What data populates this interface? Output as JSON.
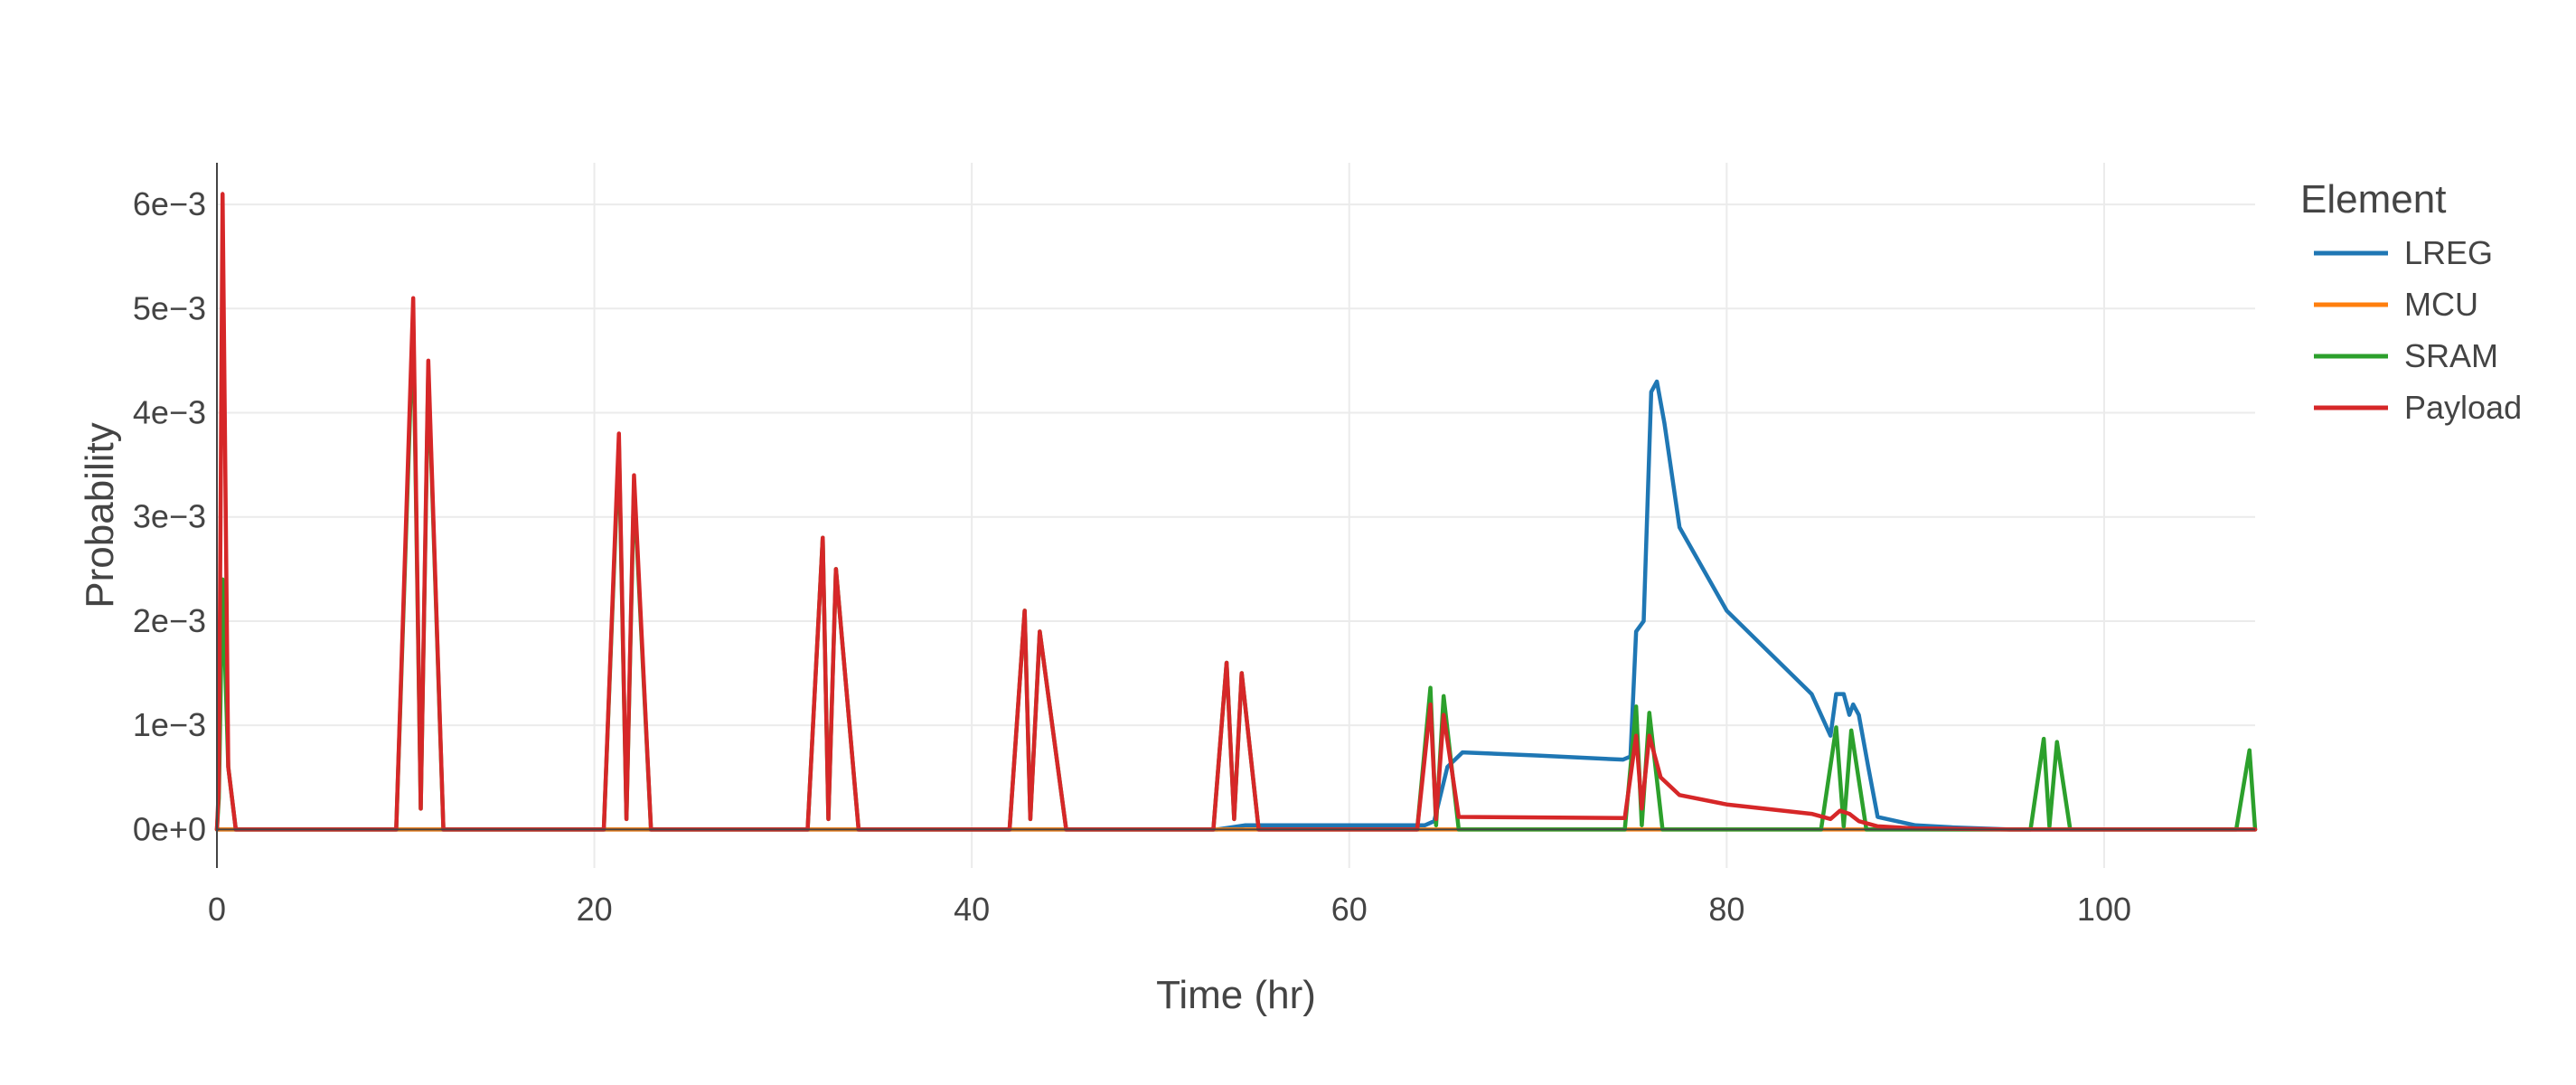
{
  "chart_data": {
    "type": "line",
    "title": "",
    "xlabel": "Time (hr)",
    "ylabel": "Probability",
    "xlim": [
      0,
      108
    ],
    "ylim": [
      -0.00037,
      0.0064
    ],
    "x_ticks": [
      0,
      20,
      40,
      60,
      80,
      100
    ],
    "x_tick_labels": [
      "0",
      "20",
      "40",
      "60",
      "80",
      "100"
    ],
    "y_ticks": [
      0,
      0.001,
      0.002,
      0.003,
      0.004,
      0.005,
      0.006
    ],
    "y_tick_labels": [
      "0e+0",
      "1e−3",
      "2e−3",
      "3e−3",
      "4e−3",
      "5e−3",
      "6e−3"
    ],
    "grid": true,
    "legend_title": "Element",
    "legend_position": "right",
    "series": [
      {
        "name": "LREG",
        "color": "#1f77b4",
        "x": [
          0,
          53,
          54.5,
          64,
          64.5,
          65.2,
          66,
          70,
          74.5,
          74.9,
          75.2,
          75.6,
          76,
          76.3,
          76.7,
          77.5,
          80,
          84.5,
          85.5,
          85.8,
          86.2,
          86.5,
          86.7,
          87,
          87.5,
          88,
          90,
          92,
          95,
          108
        ],
        "y": [
          0,
          0,
          4e-05,
          4e-05,
          8e-05,
          0.0006,
          0.00074,
          0.00071,
          0.00067,
          0.0007,
          0.0019,
          0.002,
          0.0042,
          0.0043,
          0.0039,
          0.0029,
          0.0021,
          0.0013,
          0.0009,
          0.0013,
          0.0013,
          0.0011,
          0.0012,
          0.0011,
          0.0006,
          0.00012,
          4e-05,
          2e-05,
          0,
          0
        ]
      },
      {
        "name": "MCU",
        "color": "#ff7f0e",
        "x": [
          0,
          108
        ],
        "y": [
          0,
          0
        ]
      },
      {
        "name": "SRAM",
        "color": "#2ca02c",
        "x": [
          0,
          0.1,
          0.3,
          0.6,
          1,
          9.5,
          10.4,
          10.8,
          11.2,
          12,
          20.5,
          21.3,
          21.7,
          22.1,
          23,
          31.3,
          32.1,
          32.4,
          32.8,
          34,
          42,
          42.8,
          43.1,
          43.6,
          45,
          52.8,
          53.5,
          53.9,
          54.3,
          55.2,
          63.6,
          64.3,
          64.6,
          65,
          65.8,
          74.6,
          75.2,
          75.5,
          75.9,
          76.6,
          85,
          85.8,
          86.2,
          86.6,
          87.4,
          96.1,
          96.8,
          97.1,
          97.5,
          98.2,
          107,
          107.7,
          108
        ],
        "y": [
          0,
          0.0003,
          0.0024,
          0.0006,
          0,
          0,
          0.0049,
          0.0002,
          0.0044,
          0,
          0,
          0.0037,
          0.0001,
          0.0033,
          0,
          0,
          0.0028,
          0.0001,
          0.0025,
          0,
          0,
          0.0021,
          0.0001,
          0.0019,
          0,
          0,
          0.0016,
          0.0001,
          0.0015,
          0,
          0,
          0.00136,
          4e-05,
          0.00128,
          0,
          0,
          0.00118,
          4e-05,
          0.00112,
          0,
          0,
          0.00098,
          3e-05,
          0.00095,
          0,
          0,
          0.00087,
          3e-05,
          0.00084,
          0,
          0,
          0.00076,
          0
        ]
      },
      {
        "name": "Payload",
        "color": "#d62728",
        "x": [
          0,
          0.1,
          0.3,
          0.6,
          1,
          9.5,
          10.4,
          10.8,
          11.2,
          12,
          20.5,
          21.3,
          21.7,
          22.1,
          23,
          31.3,
          32.1,
          32.4,
          32.8,
          34,
          42,
          42.8,
          43.1,
          43.6,
          45,
          52.8,
          53.5,
          53.9,
          54.3,
          55.2,
          63.6,
          64.3,
          64.6,
          65,
          65.8,
          74.6,
          75.2,
          75.5,
          75.9,
          76.5,
          77.5,
          80,
          84.5,
          85.5,
          86,
          86.5,
          87,
          88,
          90,
          95,
          108
        ],
        "y": [
          0,
          0.0004,
          0.0061,
          0.0006,
          0,
          0,
          0.0051,
          0.0002,
          0.0045,
          0,
          0,
          0.0038,
          0.0001,
          0.0034,
          0,
          0,
          0.0028,
          0.0001,
          0.0025,
          0,
          0,
          0.0021,
          0.0001,
          0.0019,
          0,
          0,
          0.0016,
          0.0001,
          0.0015,
          0,
          0,
          0.0012,
          0.0001,
          0.0011,
          0.00012,
          0.00011,
          0.0009,
          0.0002,
          0.0009,
          0.0005,
          0.00033,
          0.00024,
          0.00015,
          0.0001,
          0.00018,
          0.00015,
          8e-05,
          3e-05,
          1e-05,
          0,
          0
        ]
      }
    ]
  }
}
